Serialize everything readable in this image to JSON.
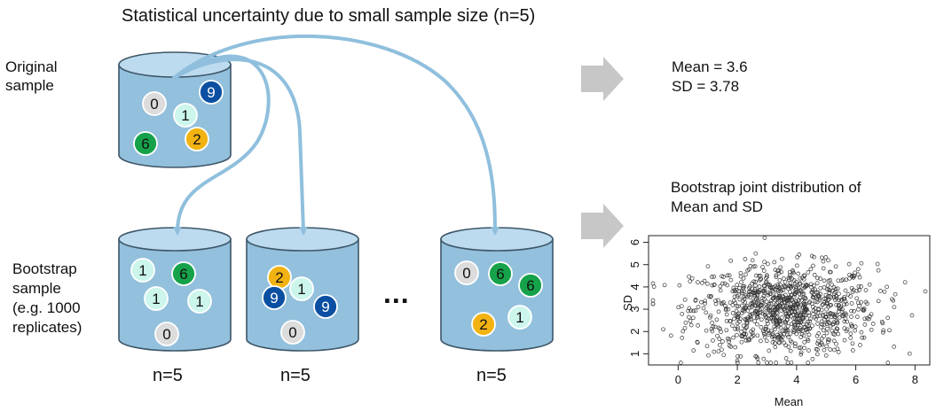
{
  "title": "Statistical uncertainty due to small sample size (n=5)",
  "labels": {
    "original_line1": "Original",
    "original_line2": "sample",
    "bootstrap_line1": "Bootstrap",
    "bootstrap_line2": "sample",
    "bootstrap_line3": "(e.g. 1000",
    "bootstrap_line4": "replicates)",
    "ellipsis": "..."
  },
  "stats": {
    "mean_line": "Mean = 3.6",
    "sd_line": "SD = 3.78"
  },
  "joint_title_line1": "Bootstrap joint distribution of",
  "joint_title_line2": "Mean and SD",
  "buckets": [
    {
      "id": "original",
      "balls": [
        "0",
        "1",
        "9",
        "6",
        "2"
      ]
    },
    {
      "id": "bootstrap-1",
      "balls": [
        "1",
        "6",
        "1",
        "1",
        "0"
      ],
      "n_label": "n=5"
    },
    {
      "id": "bootstrap-2",
      "balls": [
        "2",
        "1",
        "9",
        "9",
        "0"
      ],
      "n_label": "n=5"
    },
    {
      "id": "bootstrap-3",
      "balls": [
        "0",
        "6",
        "6",
        "2",
        "1"
      ],
      "n_label": "n=5"
    }
  ],
  "colors": {
    "bucket": "#93c0dc",
    "bucket_top": "#bddbee",
    "arrow": "#8fbfdd",
    "gray_arrow": "#c7c7c7",
    "ball_0": "#dcdcdc",
    "ball_1": "#ccf6ec",
    "ball_2": "#f2b312",
    "ball_6": "#16a24a",
    "ball_9": "#0b4fa2"
  },
  "chart_data": {
    "type": "scatter",
    "xlabel": "Mean",
    "ylabel": "SD",
    "x_ticks": [
      0,
      2,
      4,
      6,
      8
    ],
    "y_ticks": [
      1,
      2,
      3,
      4,
      5,
      6
    ],
    "xlim": [
      -1,
      8.5
    ],
    "ylim": [
      0.5,
      6.3
    ],
    "n_points": 1000,
    "center": [
      3.6,
      3.0
    ]
  }
}
